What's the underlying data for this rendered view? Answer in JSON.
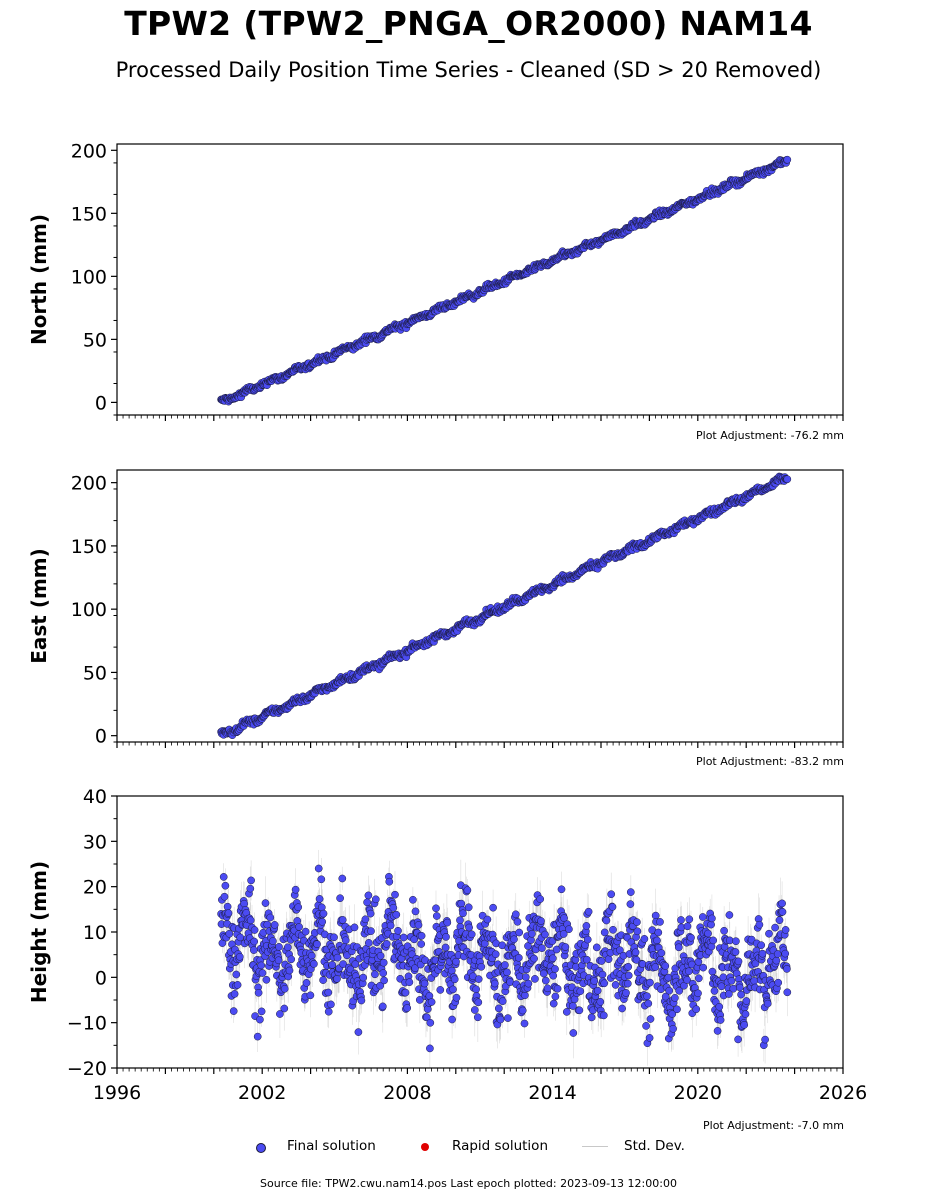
{
  "title": "TPW2 (TPW2_PNGA_OR2000) NAM14",
  "subtitle": "Processed Daily Position Time Series - Cleaned (SD > 20 Removed)",
  "colors": {
    "final": "#4b4bf2",
    "final_edge": "#1a1a3a",
    "rapid": "#e00000",
    "std_dev": "#9a9a9a"
  },
  "legend": [
    {
      "label": "Final solution",
      "marker": "blue-dot"
    },
    {
      "label": "Rapid solution",
      "marker": "red-dot"
    },
    {
      "label": "Std. Dev.",
      "marker": "grey-line"
    }
  ],
  "source_text": "Source file: TPW2.cwu.nam14.pos  Last epoch plotted: 2023-09-13 12:00:00",
  "chart_data": [
    {
      "type": "scatter",
      "ylabel": "North (mm)",
      "adjustment": "Plot Adjustment: -76.2 mm",
      "xlim": [
        1996,
        2026
      ],
      "ylim": [
        -10,
        205
      ],
      "yticks": [
        0,
        50,
        100,
        150,
        200
      ],
      "xticklabels": [],
      "data_range": [
        2000.3,
        2023.7
      ],
      "trend": {
        "start": 0,
        "end": 192
      },
      "noise_mm": 1.6,
      "seasonal_mm": 1.2,
      "sd_mm": 1.5
    },
    {
      "type": "scatter",
      "ylabel": "East (mm)",
      "adjustment": "Plot Adjustment: -83.2 mm",
      "xlim": [
        1996,
        2026
      ],
      "ylim": [
        -5,
        210
      ],
      "yticks": [
        0,
        50,
        100,
        150,
        200
      ],
      "xticklabels": [],
      "data_range": [
        2000.3,
        2023.7
      ],
      "trend": {
        "start": 0,
        "end": 204
      },
      "noise_mm": 1.8,
      "seasonal_mm": 1.5,
      "sd_mm": 1.8
    },
    {
      "type": "scatter",
      "ylabel": "Height (mm)",
      "adjustment": "Plot Adjustment: -7.0 mm",
      "xlim": [
        1996,
        2026
      ],
      "ylim": [
        -20,
        40
      ],
      "yticks": [
        -20,
        -10,
        0,
        10,
        20,
        30,
        40
      ],
      "yticklabels": [
        "−20",
        "−10",
        "0",
        "10",
        "20",
        "30",
        "40"
      ],
      "xticks": [
        1996,
        2002,
        2008,
        2014,
        2020,
        2026
      ],
      "xticklabels": [
        "1996",
        "2002",
        "2008",
        "2014",
        "2020",
        "2026"
      ],
      "data_range": [
        2000.3,
        2023.7
      ],
      "trend": {
        "start": 7,
        "end": 1
      },
      "noise_mm": 6.5,
      "seasonal_mm": 5.5,
      "sd_mm": 4.0
    }
  ]
}
